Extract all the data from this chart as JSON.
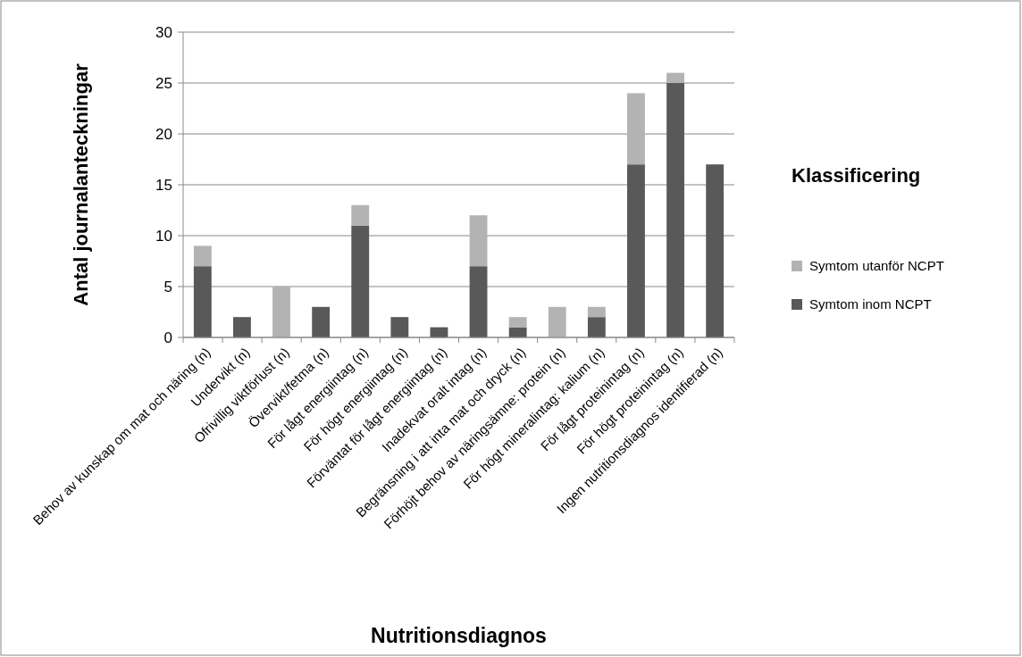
{
  "chart_data": {
    "type": "bar",
    "stacked": true,
    "xlabel": "Nutritionsdiagnos",
    "ylabel": "Antal journalanteckningar",
    "legend_title": "Klassificering",
    "categories": [
      "Behov av kunskap om mat och näring (n)",
      "Undervikt (n)",
      "Ofrivillig viktförlust (n)",
      "Övervikt/fetma (n)",
      "För lågt energiintag (n)",
      "För högt energiintag (n)",
      "Förväntat för lågt energiintag (n)",
      "Inadekvat oralt intag (n)",
      "Begränsning i att inta mat och dryck (n)",
      "Förhöjt behov av näringsämne: protein (n)",
      "För högt mineralintag: kalium (n)",
      "För lågt proteinintag (n)",
      "För högt proteinintag (n)",
      "Ingen nutritionsdiagnos identifierad (n)"
    ],
    "series": [
      {
        "name": "Symtom inom NCPT",
        "color": "#595959",
        "values": [
          7,
          2,
          0,
          3,
          11,
          2,
          1,
          7,
          1,
          0,
          2,
          17,
          25,
          17
        ]
      },
      {
        "name": "Symtom utanför NCPT",
        "color": "#b3b3b3",
        "values": [
          2,
          0,
          5,
          0,
          2,
          0,
          0,
          5,
          1,
          3,
          1,
          7,
          1,
          0
        ]
      }
    ],
    "ylim": [
      0,
      30
    ],
    "yticks": [
      0,
      5,
      10,
      15,
      20,
      25,
      30
    ],
    "grid": "y",
    "legend": "right"
  }
}
